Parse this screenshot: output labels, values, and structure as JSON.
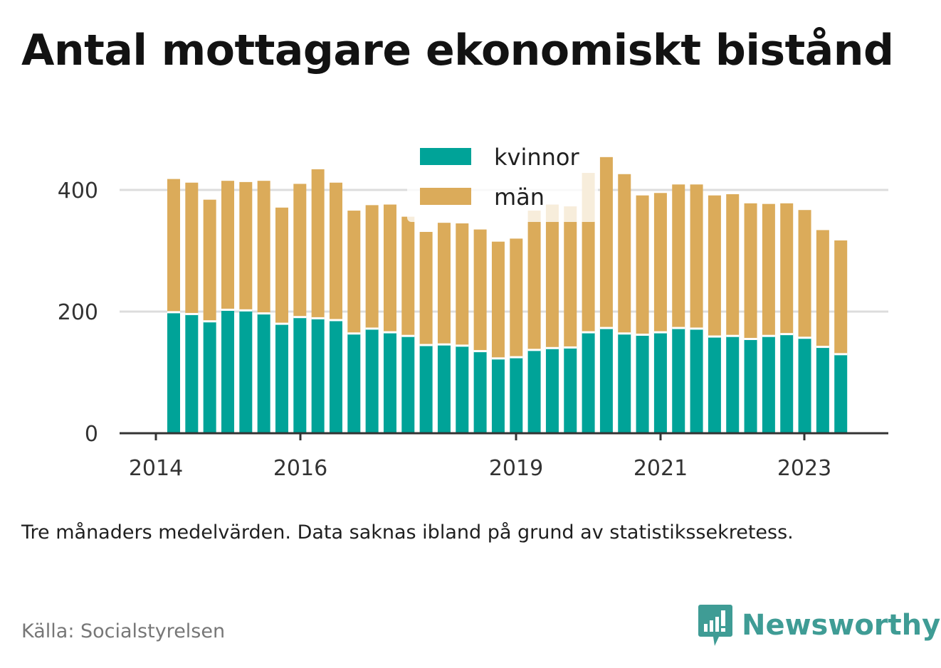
{
  "title": "Antal mottagare ekonomiskt bistånd",
  "note": "Tre månaders medelvärden. Data saknas ibland på grund av statistikssekretess.",
  "source": "Källa: Socialstyrelsen",
  "brand": {
    "name": "Newsworthy",
    "logo_icon": "newsworthy-chart-bubble-icon"
  },
  "colors": {
    "kvinnor": "#00a398",
    "man": "#dbab5a",
    "grid": "#dddddd",
    "axis": "#333333"
  },
  "chart_data": {
    "type": "bar",
    "stacked": true,
    "x_tick_labels": [
      "2014",
      "2016",
      "2019",
      "2021",
      "2023"
    ],
    "y_ticks": [
      0,
      200,
      400
    ],
    "ylim": [
      0,
      460
    ],
    "grid": true,
    "legend_position": "top-center",
    "series": [
      {
        "name": "kvinnor",
        "values": [
          199,
          196,
          184,
          203,
          202,
          197,
          180,
          191,
          189,
          186,
          164,
          172,
          166,
          160,
          145,
          146,
          144,
          135,
          123,
          125,
          137,
          140,
          141,
          166,
          173,
          164,
          162,
          166,
          173,
          172,
          159,
          160,
          155,
          160,
          163,
          157,
          142,
          130
        ]
      },
      {
        "name": "män",
        "values": [
          219,
          216,
          200,
          212,
          211,
          218,
          191,
          219,
          245,
          226,
          202,
          203,
          210,
          196,
          186,
          200,
          201,
          200,
          192,
          195,
          229,
          236,
          232,
          262,
          281,
          262,
          229,
          229,
          236,
          237,
          232,
          233,
          223,
          217,
          215,
          210,
          192,
          187
        ]
      }
    ]
  }
}
